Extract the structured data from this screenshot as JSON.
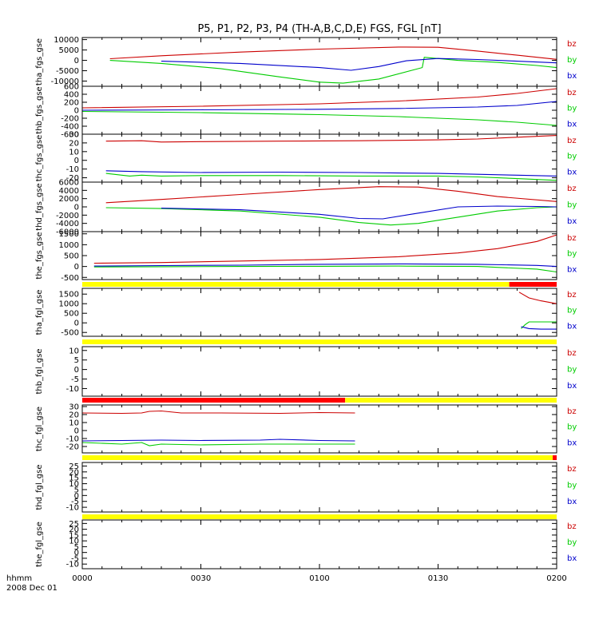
{
  "title": "P5, P1, P2, P3, P4 (TH-A,B,C,D,E) FGS, FGL [nT]",
  "x_axis": {
    "ticks": [
      {
        "label": "0000",
        "value": 0
      },
      {
        "label": "0030",
        "value": 30
      },
      {
        "label": "0100",
        "value": 60
      },
      {
        "label": "0130",
        "value": 90
      },
      {
        "label": "0200",
        "value": 120
      }
    ],
    "corner_line1": "hhmm",
    "corner_line2": "2008 Dec 01"
  },
  "colors": {
    "bz": "#cc0000",
    "by": "#00cc00",
    "bx": "#0000cc",
    "flag_yellow": "#ffff00",
    "flag_red": "#ff0000"
  },
  "chart_data": [
    {
      "type": "line",
      "ylabel": "tha_fgs_gse",
      "yrange": [
        -12500,
        11000
      ],
      "ticks": [
        {
          "v": 10000,
          "l": "10000"
        },
        {
          "v": 5000,
          "l": "5000"
        },
        {
          "v": 0,
          "l": "0"
        },
        {
          "v": -5000,
          "l": "-5000"
        },
        {
          "v": -10000,
          "l": "-10000"
        }
      ],
      "series": [
        {
          "name": "bz",
          "x": [
            7,
            20,
            40,
            60,
            80,
            90,
            100,
            110,
            120
          ],
          "y": [
            800,
            2200,
            4000,
            5400,
            6400,
            6300,
            4500,
            2500,
            500
          ]
        },
        {
          "name": "by",
          "x": [
            7,
            20,
            35,
            50,
            60,
            66,
            75,
            86,
            86.5,
            95,
            105,
            115,
            120
          ],
          "y": [
            0,
            -1500,
            -4000,
            -8000,
            -10500,
            -11000,
            -9000,
            -3500,
            1500,
            0,
            -1000,
            -2500,
            -3500
          ]
        },
        {
          "name": "bx",
          "x": [
            20,
            40,
            60,
            68,
            75,
            82,
            90,
            100,
            110,
            120
          ],
          "y": [
            -400,
            -1500,
            -3500,
            -4800,
            -3000,
            -200,
            900,
            400,
            -400,
            -1200
          ]
        }
      ]
    },
    {
      "type": "line",
      "ylabel": "thb_fgs_gse",
      "yrange": [
        -600,
        600
      ],
      "ticks": [
        {
          "v": 600,
          "l": "600"
        },
        {
          "v": 400,
          "l": "400"
        },
        {
          "v": 200,
          "l": "200"
        },
        {
          "v": 0,
          "l": "0"
        },
        {
          "v": -200,
          "l": "-200"
        },
        {
          "v": -400,
          "l": "-400"
        },
        {
          "v": -600,
          "l": "-600"
        }
      ],
      "series": [
        {
          "name": "bz",
          "x": [
            0,
            30,
            60,
            80,
            100,
            110,
            120
          ],
          "y": [
            60,
            100,
            160,
            230,
            330,
            420,
            540
          ]
        },
        {
          "name": "by",
          "x": [
            0,
            30,
            60,
            80,
            100,
            110,
            120
          ],
          "y": [
            -30,
            -60,
            -110,
            -160,
            -240,
            -300,
            -380
          ]
        },
        {
          "name": "bx",
          "x": [
            0,
            30,
            60,
            80,
            100,
            110,
            120
          ],
          "y": [
            0,
            10,
            25,
            45,
            80,
            120,
            220
          ]
        }
      ]
    },
    {
      "type": "line",
      "ylabel": "thc_fgs_gse",
      "yrange": [
        -25,
        30
      ],
      "ticks": [
        {
          "v": 30,
          "l": "30"
        },
        {
          "v": 20,
          "l": "20"
        },
        {
          "v": 10,
          "l": "10"
        },
        {
          "v": 0,
          "l": "0"
        },
        {
          "v": -10,
          "l": "-10"
        },
        {
          "v": -20,
          "l": "-20"
        }
      ],
      "series": [
        {
          "name": "bz",
          "x": [
            6,
            15,
            20,
            30,
            50,
            70,
            90,
            100,
            110,
            120
          ],
          "y": [
            22,
            22.5,
            21,
            21.5,
            22,
            22.5,
            23.5,
            24.5,
            26.5,
            28.5
          ]
        },
        {
          "name": "by",
          "x": [
            6,
            12,
            15,
            20,
            30,
            50,
            70,
            90,
            100,
            110,
            120
          ],
          "y": [
            -15,
            -18,
            -17,
            -18,
            -17.5,
            -17.5,
            -18,
            -18,
            -19,
            -21,
            -23
          ]
        },
        {
          "name": "bx",
          "x": [
            6,
            15,
            30,
            50,
            70,
            90,
            100,
            110,
            120
          ],
          "y": [
            -12,
            -13,
            -14,
            -13.5,
            -14,
            -15,
            -16,
            -17,
            -18
          ]
        }
      ]
    },
    {
      "type": "line",
      "ylabel": "thd_fgs_gse",
      "yrange": [
        -6000,
        6000
      ],
      "ticks": [
        {
          "v": 6000,
          "l": "6000"
        },
        {
          "v": 4000,
          "l": "4000"
        },
        {
          "v": 2000,
          "l": "2000"
        },
        {
          "v": 0,
          "l": "0"
        },
        {
          "v": -2000,
          "l": "-2000"
        },
        {
          "v": -4000,
          "l": "-4000"
        },
        {
          "v": -6000,
          "l": "-6000"
        }
      ],
      "series": [
        {
          "name": "bz",
          "x": [
            6,
            20,
            40,
            60,
            75,
            85,
            95,
            105,
            120
          ],
          "y": [
            1000,
            1800,
            3000,
            4200,
            4900,
            4800,
            3800,
            2500,
            1300
          ]
        },
        {
          "name": "by",
          "x": [
            6,
            20,
            40,
            60,
            70,
            78,
            85,
            95,
            105,
            115,
            120
          ],
          "y": [
            -200,
            -400,
            -1000,
            -2500,
            -3800,
            -4400,
            -4000,
            -2500,
            -1000,
            -200,
            0
          ]
        },
        {
          "name": "bx",
          "x": [
            20,
            40,
            60,
            70,
            76,
            85,
            95,
            105,
            115,
            120
          ],
          "y": [
            -300,
            -700,
            -1800,
            -2800,
            -2900,
            -1500,
            0,
            200,
            100,
            0
          ]
        }
      ]
    },
    {
      "type": "line",
      "ylabel": "the_fgs_gse",
      "yrange": [
        -600,
        1600
      ],
      "ticks": [
        {
          "v": 1500,
          "l": "1500"
        },
        {
          "v": 1000,
          "l": "1000"
        },
        {
          "v": 500,
          "l": "500"
        },
        {
          "v": 0,
          "l": "0"
        },
        {
          "v": -500,
          "l": "-500"
        }
      ],
      "series": [
        {
          "name": "bz",
          "x": [
            3,
            20,
            40,
            60,
            80,
            95,
            105,
            115,
            120
          ],
          "y": [
            150,
            180,
            250,
            320,
            450,
            620,
            820,
            1150,
            1450
          ]
        },
        {
          "name": "by",
          "x": [
            3,
            20,
            40,
            60,
            80,
            100,
            115,
            120
          ],
          "y": [
            -20,
            -10,
            0,
            10,
            20,
            0,
            -120,
            -250
          ]
        },
        {
          "name": "bx",
          "x": [
            3,
            20,
            40,
            60,
            80,
            100,
            115,
            120
          ],
          "y": [
            20,
            40,
            60,
            100,
            120,
            100,
            50,
            0
          ]
        }
      ]
    },
    {
      "type": "line",
      "ylabel": "tha_fgl_gse",
      "yrange": [
        -700,
        1800
      ],
      "ticks": [
        {
          "v": 1500,
          "l": "1500"
        },
        {
          "v": 1000,
          "l": "1000"
        },
        {
          "v": 500,
          "l": "500"
        },
        {
          "v": 0,
          "l": "0"
        },
        {
          "v": -500,
          "l": "-500"
        }
      ],
      "series": [
        {
          "name": "bz",
          "x": [
            110.5,
            113,
            116,
            120
          ],
          "y": [
            1600,
            1300,
            1150,
            1000
          ]
        },
        {
          "name": "by",
          "x": [
            111,
            112,
            113,
            116,
            120
          ],
          "y": [
            -300,
            -100,
            50,
            50,
            50
          ]
        },
        {
          "name": "bx",
          "x": [
            111,
            112,
            113,
            116,
            120
          ],
          "y": [
            -200,
            -250,
            -300,
            -330,
            -330
          ]
        }
      ]
    },
    {
      "type": "line",
      "ylabel": "thb_fgl_gse",
      "yrange": [
        -14,
        12
      ],
      "ticks": [
        {
          "v": 10,
          "l": "10"
        },
        {
          "v": 5,
          "l": "5"
        },
        {
          "v": 0,
          "l": "0"
        },
        {
          "v": -5,
          "l": "-5"
        },
        {
          "v": -10,
          "l": "-10"
        }
      ],
      "series": []
    },
    {
      "type": "line",
      "ylabel": "thc_fgl_gse",
      "yrange": [
        -28,
        32
      ],
      "ticks": [
        {
          "v": 30,
          "l": "30"
        },
        {
          "v": 20,
          "l": "20"
        },
        {
          "v": 10,
          "l": "10"
        },
        {
          "v": 0,
          "l": "0"
        },
        {
          "v": -10,
          "l": "-10"
        },
        {
          "v": -20,
          "l": "-20"
        }
      ],
      "series": [
        {
          "name": "bz",
          "x": [
            0,
            10,
            15,
            17,
            20,
            25,
            35,
            50,
            60,
            69
          ],
          "y": [
            22,
            21.5,
            22,
            24,
            24.5,
            22,
            22,
            21.5,
            22.5,
            22
          ]
        },
        {
          "name": "by",
          "x": [
            0,
            10,
            15,
            17,
            20,
            30,
            45,
            60,
            69
          ],
          "y": [
            -15,
            -17,
            -15,
            -19,
            -17,
            -18,
            -17,
            -17,
            -17
          ]
        },
        {
          "name": "bx",
          "x": [
            0,
            10,
            20,
            30,
            45,
            50,
            60,
            69
          ],
          "y": [
            -13,
            -12.5,
            -12,
            -12.5,
            -12,
            -11,
            -12.5,
            -13
          ]
        }
      ]
    },
    {
      "type": "line",
      "ylabel": "thd_fgl_gse",
      "yrange": [
        -14,
        28
      ],
      "ticks": [
        {
          "v": 25,
          "l": "25"
        },
        {
          "v": 20,
          "l": "20"
        },
        {
          "v": 15,
          "l": "15"
        },
        {
          "v": 10,
          "l": "10"
        },
        {
          "v": 5,
          "l": "5"
        },
        {
          "v": 0,
          "l": "0"
        },
        {
          "v": -5,
          "l": "-5"
        },
        {
          "v": -10,
          "l": "-10"
        }
      ],
      "series": []
    },
    {
      "type": "line",
      "ylabel": "the_fgl_gse",
      "yrange": [
        -14,
        28
      ],
      "ticks": [
        {
          "v": 25,
          "l": "25"
        },
        {
          "v": 20,
          "l": "20"
        },
        {
          "v": 15,
          "l": "15"
        },
        {
          "v": 10,
          "l": "10"
        },
        {
          "v": 5,
          "l": "5"
        },
        {
          "v": 0,
          "l": "0"
        },
        {
          "v": -5,
          "l": "-5"
        },
        {
          "v": -10,
          "l": "-10"
        }
      ],
      "series": []
    }
  ],
  "flag_bars": [
    {
      "segments": [
        {
          "x0": 0,
          "x1": 108,
          "color": "yellow"
        },
        {
          "x0": 108,
          "x1": 120,
          "color": "red"
        }
      ]
    },
    {
      "segments": [
        {
          "x0": 0,
          "x1": 120,
          "color": "yellow"
        }
      ]
    },
    {
      "segments": [
        {
          "x0": 0,
          "x1": 66.5,
          "color": "red"
        },
        {
          "x0": 66.5,
          "x1": 120,
          "color": "yellow"
        }
      ]
    },
    {
      "segments": [
        {
          "x0": 0,
          "x1": 119,
          "color": "yellow"
        },
        {
          "x0": 119,
          "x1": 120,
          "color": "red"
        }
      ]
    },
    {
      "segments": [
        {
          "x0": 0,
          "x1": 120,
          "color": "yellow"
        }
      ]
    }
  ],
  "legend_labels": [
    "bz",
    "by",
    "bx"
  ]
}
